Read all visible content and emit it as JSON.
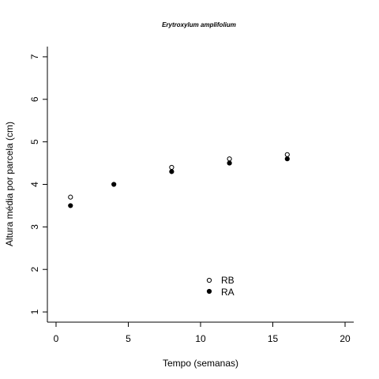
{
  "chart_data": {
    "type": "scatter",
    "title": "Erytroxylum amplifolium",
    "xlabel": "Tempo (semanas)",
    "ylabel": "Altura média por parcela (cm)",
    "xlim": [
      -0.6,
      20.6
    ],
    "ylim": [
      0.76,
      7.24
    ],
    "xticks": [
      "0",
      "5",
      "10",
      "15",
      "20"
    ],
    "yticks": [
      "1",
      "2",
      "3",
      "4",
      "5",
      "6",
      "7"
    ],
    "grid": false,
    "legend_position": "bottom-center",
    "series": [
      {
        "name": "RB",
        "marker": "open-circle",
        "color": "#000000",
        "x": [
          1,
          8,
          12,
          16
        ],
        "y": [
          3.7,
          4.4,
          4.6,
          4.7
        ]
      },
      {
        "name": "RA",
        "marker": "filled-circle",
        "color": "#000000",
        "x": [
          1,
          4,
          8,
          12,
          16
        ],
        "y": [
          3.5,
          4.0,
          4.3,
          4.5,
          4.6
        ]
      }
    ]
  }
}
